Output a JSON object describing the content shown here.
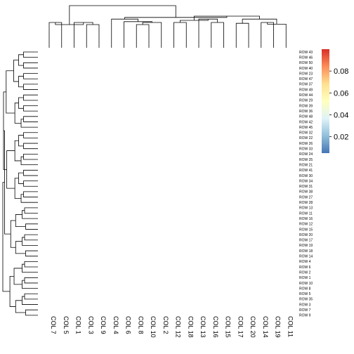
{
  "chart_data": {
    "type": "heatmap",
    "title": "",
    "xlabel": "",
    "ylabel": "",
    "columns": [
      "COL 7",
      "COL 5",
      "COL 1",
      "COL 3",
      "COL 9",
      "COL 4",
      "COL 6",
      "COL 8",
      "COL 10",
      "COL 2",
      "COL 12",
      "COL 18",
      "COL 13",
      "COL 16",
      "COL 15",
      "COL 17",
      "COL 20",
      "COL 14",
      "COL 19",
      "COL 11"
    ],
    "rows": [
      "ROW 43",
      "ROW 46",
      "ROW 50",
      "ROW 40",
      "ROW 23",
      "ROW 47",
      "ROW 37",
      "ROW 49",
      "ROW 44",
      "ROW 29",
      "ROW 39",
      "ROW 36",
      "ROW 48",
      "ROW 42",
      "ROW 45",
      "ROW 32",
      "ROW 22",
      "ROW 26",
      "ROW 33",
      "ROW 24",
      "ROW 25",
      "ROW 21",
      "ROW 41",
      "ROW 30",
      "ROW 34",
      "ROW 31",
      "ROW 38",
      "ROW 27",
      "ROW 28",
      "ROW 13",
      "ROW 11",
      "ROW 16",
      "ROW 12",
      "ROW 15",
      "ROW 20",
      "ROW 17",
      "ROW 19",
      "ROW 18",
      "ROW 14",
      "ROW 4",
      "ROW 6",
      "ROW 2",
      "ROW 1",
      "ROW 10",
      "ROW 8",
      "ROW 5",
      "ROW 35",
      "ROW 3",
      "ROW 7",
      "ROW 9"
    ],
    "values": "all cells near 0 (rendered white)",
    "colorbar": {
      "ticks": [
        0.02,
        0.04,
        0.06,
        0.08
      ],
      "tick_labels": [
        "0.02",
        "0.04",
        "0.06",
        "0.08"
      ],
      "range": [
        0.005,
        0.1
      ],
      "colors": [
        "#4575b4",
        "#91bfdb",
        "#e0f3f8",
        "#ffffbf",
        "#fee090",
        "#fc8d59",
        "#d73027"
      ]
    },
    "col_dendrogram": true,
    "row_dendrogram": true,
    "legend_position": "right"
  }
}
